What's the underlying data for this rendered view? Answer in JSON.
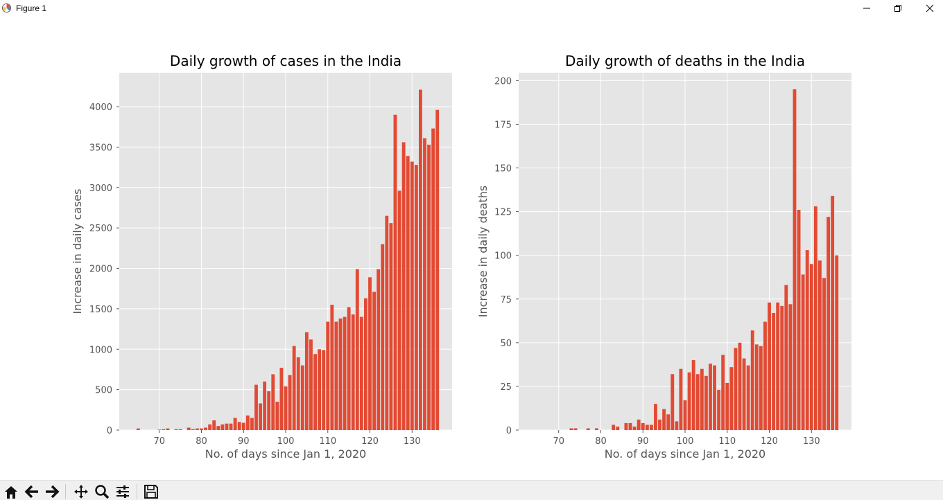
{
  "window": {
    "title": "Figure 1",
    "icons": [
      "matplotlib-icon",
      "minimize-icon",
      "restore-icon",
      "close-icon"
    ]
  },
  "toolbar": {
    "buttons": [
      "home-icon",
      "back-icon",
      "forward-icon",
      "pan-icon",
      "zoom-icon",
      "configure-subplots-icon",
      "save-icon"
    ]
  },
  "style": {
    "bar_color": "#e24a33",
    "axes_bg": "#e5e5e5",
    "grid_color": "#ffffff"
  },
  "chart_data": [
    {
      "type": "bar",
      "title": "Daily growth of cases in the India",
      "xlabel": "No. of days since Jan 1, 2020",
      "ylabel": "Increase in daily cases",
      "xlim": [
        60.5,
        139.5
      ],
      "ylim": [
        0,
        4420
      ],
      "xticks": [
        70,
        80,
        90,
        100,
        110,
        120,
        130
      ],
      "yticks": [
        0,
        500,
        1000,
        1500,
        2000,
        2500,
        3000,
        3500,
        4000
      ],
      "grid": true,
      "x": [
        65,
        66,
        67,
        68,
        69,
        70,
        71,
        72,
        73,
        74,
        75,
        76,
        77,
        78,
        79,
        80,
        81,
        82,
        83,
        84,
        85,
        86,
        87,
        88,
        89,
        90,
        91,
        92,
        93,
        94,
        95,
        96,
        97,
        98,
        99,
        100,
        101,
        102,
        103,
        104,
        105,
        106,
        107,
        108,
        109,
        110,
        111,
        112,
        113,
        114,
        115,
        116,
        117,
        118,
        119,
        120,
        121,
        122,
        123,
        124,
        125,
        126,
        127,
        128,
        129,
        130,
        131,
        132,
        133,
        134,
        135,
        136
      ],
      "values": [
        20,
        0,
        0,
        0,
        0,
        5,
        10,
        20,
        0,
        10,
        10,
        0,
        30,
        10,
        20,
        20,
        30,
        70,
        120,
        50,
        70,
        80,
        80,
        150,
        100,
        90,
        180,
        150,
        560,
        330,
        600,
        480,
        690,
        350,
        770,
        540,
        680,
        1040,
        900,
        800,
        1210,
        1120,
        940,
        1000,
        990,
        1340,
        1550,
        1340,
        1380,
        1400,
        1520,
        1430,
        1990,
        1400,
        1630,
        1890,
        1710,
        1990,
        2300,
        2650,
        2560,
        3900,
        2960,
        3560,
        3390,
        3320,
        3280,
        4210,
        3610,
        3530,
        3730,
        3960
      ]
    },
    {
      "type": "bar",
      "title": "Daily growth of deaths in the India",
      "xlabel": "No. of days since Jan 1, 2020",
      "ylabel": "Increase in daily deaths",
      "xlim": [
        60.5,
        139.5
      ],
      "ylim": [
        0,
        204.5
      ],
      "xticks": [
        70,
        80,
        90,
        100,
        110,
        120,
        130
      ],
      "yticks": [
        0,
        25,
        50,
        75,
        100,
        125,
        150,
        175,
        200
      ],
      "grid": true,
      "x": [
        73,
        74,
        77,
        79,
        83,
        84,
        86,
        87,
        88,
        89,
        90,
        91,
        92,
        93,
        94,
        95,
        96,
        97,
        98,
        99,
        100,
        101,
        102,
        103,
        104,
        105,
        106,
        107,
        108,
        109,
        110,
        111,
        112,
        113,
        114,
        115,
        116,
        117,
        118,
        119,
        120,
        121,
        122,
        123,
        124,
        125,
        126,
        127,
        128,
        129,
        130,
        131,
        132,
        133,
        134,
        135,
        136
      ],
      "values": [
        1,
        1,
        1,
        1,
        3,
        2,
        4,
        4,
        2,
        6,
        4,
        3,
        3,
        15,
        6,
        12,
        9,
        32,
        5,
        35,
        17,
        33,
        40,
        32,
        35,
        31,
        38,
        37,
        23,
        43,
        27,
        36,
        47,
        50,
        41,
        37,
        57,
        49,
        48,
        62,
        73,
        67,
        73,
        71,
        83,
        72,
        195,
        126,
        89,
        103,
        95,
        128,
        97,
        87,
        122,
        134,
        100
      ]
    }
  ]
}
